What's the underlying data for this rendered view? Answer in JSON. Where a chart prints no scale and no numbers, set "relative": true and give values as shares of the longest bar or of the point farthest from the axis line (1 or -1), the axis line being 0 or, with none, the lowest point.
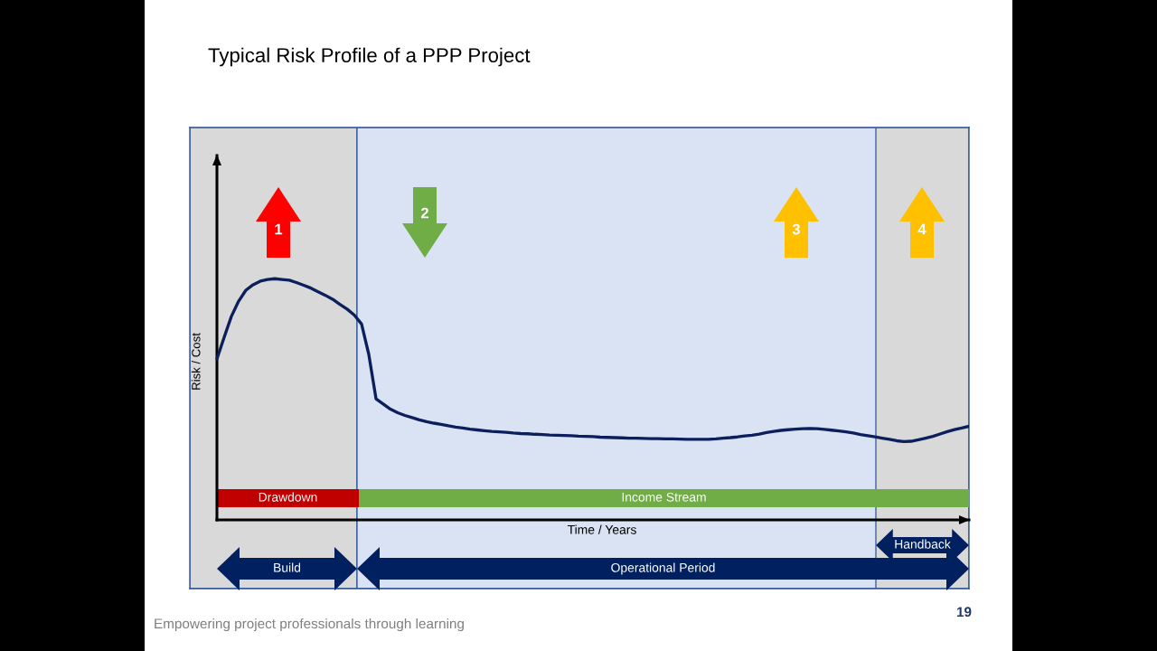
{
  "chart_data": {
    "type": "line",
    "title": "Typical Risk Profile of a PPP Project",
    "xlabel": "Time / Years",
    "ylabel": "Risk / Cost",
    "relative": true,
    "categories": [
      null,
      null,
      null,
      null,
      null,
      null,
      null,
      null,
      null,
      null,
      null,
      null,
      null,
      null,
      null,
      null,
      null,
      null,
      null,
      null,
      null,
      null,
      null,
      null,
      null,
      null,
      null,
      null,
      null,
      null,
      null,
      null,
      null,
      null,
      null,
      null,
      null,
      null,
      null,
      null,
      null,
      null,
      null,
      null,
      null,
      null,
      null,
      null,
      null,
      null,
      null,
      null,
      null,
      null,
      null,
      null,
      null,
      null,
      null,
      null,
      null,
      null,
      null,
      null,
      null,
      null,
      null,
      null,
      null,
      null,
      null,
      null,
      null,
      null,
      null,
      null,
      null,
      null,
      null,
      null,
      null,
      null,
      null,
      null,
      null,
      null,
      null,
      null,
      null,
      null,
      null,
      null,
      null,
      null,
      null,
      null,
      null,
      null,
      null,
      null,
      null,
      null,
      null,
      null,
      null
    ],
    "series": [
      {
        "color": "#0b1f5c",
        "values": [
          0.667,
          0.757,
          0.844,
          0.907,
          0.952,
          0.975,
          0.99,
          0.997,
          1.0,
          0.997,
          0.994,
          0.984,
          0.973,
          0.961,
          0.946,
          0.931,
          0.915,
          0.894,
          0.874,
          0.849,
          0.812,
          0.686,
          0.502,
          0.48,
          0.459,
          0.444,
          0.433,
          0.424,
          0.415,
          0.407,
          0.401,
          0.396,
          0.39,
          0.385,
          0.381,
          0.376,
          0.373,
          0.37,
          0.367,
          0.365,
          0.363,
          0.36,
          0.358,
          0.357,
          0.355,
          0.354,
          0.352,
          0.351,
          0.35,
          0.349,
          0.347,
          0.346,
          0.345,
          0.343,
          0.342,
          0.341,
          0.34,
          0.339,
          0.339,
          0.338,
          0.337,
          0.337,
          0.336,
          0.336,
          0.335,
          0.334,
          0.334,
          0.334,
          0.334,
          0.336,
          0.339,
          0.341,
          0.344,
          0.348,
          0.351,
          0.356,
          0.362,
          0.367,
          0.371,
          0.374,
          0.376,
          0.378,
          0.379,
          0.378,
          0.375,
          0.372,
          0.369,
          0.365,
          0.36,
          0.354,
          0.349,
          0.344,
          0.339,
          0.334,
          0.328,
          0.325,
          0.326,
          0.332,
          0.339,
          0.346,
          0.356,
          0.366,
          0.374,
          0.381,
          0.388
        ]
      }
    ],
    "annotations": [
      "1",
      "2",
      "3",
      "4",
      "Drawdown",
      "Income Stream",
      "Build",
      "Operational Period",
      "Handback",
      "Empowering project professionals through learning",
      "19"
    ]
  }
}
